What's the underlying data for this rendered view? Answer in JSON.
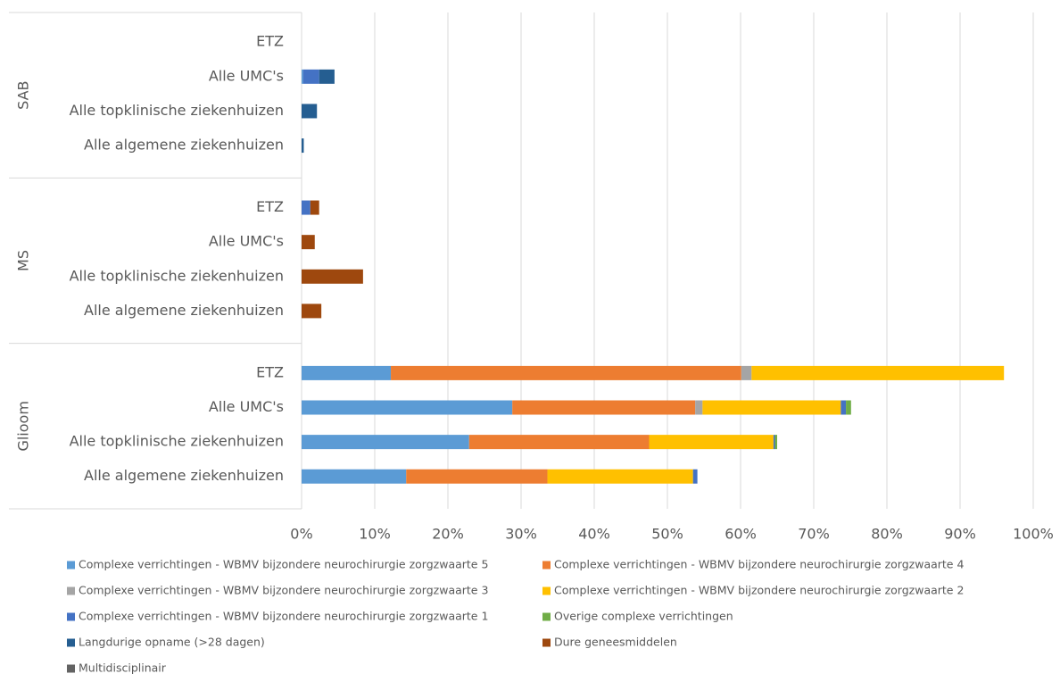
{
  "chart_data": {
    "type": "stacked-barh",
    "group_labels": [
      "SAB",
      "MS",
      "Glioom"
    ],
    "categories": [
      "ETZ",
      "Alle UMC's",
      "Alle topklinische ziekenhuizen",
      "Alle algemene ziekenhuizen",
      "ETZ",
      "Alle UMC's",
      "Alle topklinische ziekenhuizen",
      "Alle algemene ziekenhuizen",
      "ETZ",
      "Alle UMC's",
      "Alle topklinische ziekenhuizen",
      "Alle algemene ziekenhuizen"
    ],
    "series": [
      {
        "name": "Complexe verrichtingen - WBMV bijzondere neurochirurgie zorgzwaarte 5",
        "color": "#5b9bd5",
        "values": [
          0,
          0.2,
          0,
          0,
          0,
          0,
          0,
          0,
          12.2,
          28.8,
          22.9,
          14.3
        ]
      },
      {
        "name": "Complexe verrichtingen - WBMV bijzondere neurochirurgie zorgzwaarte 4",
        "color": "#ed7d31",
        "values": [
          0,
          0,
          0,
          0,
          0,
          0,
          0,
          0,
          47.9,
          25.0,
          24.6,
          19.3
        ]
      },
      {
        "name": "Complexe verrichtingen - WBMV bijzondere neurochirurgie zorgzwaarte 3",
        "color": "#a5a5a5",
        "values": [
          0,
          0,
          0,
          0,
          0,
          0,
          0,
          0,
          1.4,
          1.0,
          0,
          0
        ]
      },
      {
        "name": "Complexe verrichtingen - WBMV bijzondere neurochirurgie zorgzwaarte 2",
        "color": "#ffc000",
        "values": [
          0,
          0,
          0,
          0,
          0,
          0,
          0,
          0,
          34.5,
          18.9,
          17.0,
          19.9
        ]
      },
      {
        "name": "Complexe verrichtingen - WBMV bijzondere neurochirurgie zorgzwaarte 1",
        "color": "#4472c4",
        "values": [
          0,
          2.2,
          0,
          0,
          1.2,
          0,
          0,
          0,
          0,
          0.7,
          0.2,
          0.6
        ]
      },
      {
        "name": "Overige complexe verrichtingen",
        "color": "#70ad47",
        "values": [
          0,
          0,
          0,
          0,
          0,
          0,
          0,
          0,
          0,
          0.7,
          0.3,
          0
        ]
      },
      {
        "name": "Langdurige opname (>28 dagen)",
        "color": "#255e91",
        "values": [
          0,
          2.1,
          2.1,
          0.3,
          0,
          0,
          0,
          0,
          0,
          0,
          0,
          0
        ]
      },
      {
        "name": "Dure geneesmiddelen",
        "color": "#9e480e",
        "values": [
          0,
          0,
          0,
          0,
          1.2,
          1.8,
          8.4,
          2.7,
          0,
          0,
          0,
          0
        ]
      },
      {
        "name": "Multidisciplinair",
        "color": "#636363",
        "values": [
          0,
          0,
          0,
          0,
          0,
          0,
          0,
          0,
          0,
          0,
          0,
          0
        ]
      }
    ],
    "xlim": [
      0,
      100
    ],
    "xticks": [
      {
        "value": 0,
        "label": "0%"
      },
      {
        "value": 10,
        "label": "10%"
      },
      {
        "value": 20,
        "label": "20%"
      },
      {
        "value": 30,
        "label": "30%"
      },
      {
        "value": 40,
        "label": "40%"
      },
      {
        "value": 50,
        "label": "50%"
      },
      {
        "value": 60,
        "label": "60%"
      },
      {
        "value": 70,
        "label": "70%"
      },
      {
        "value": 80,
        "label": "80%"
      },
      {
        "value": 90,
        "label": "90%"
      },
      {
        "value": 100,
        "label": "100%"
      }
    ],
    "grid": true
  }
}
